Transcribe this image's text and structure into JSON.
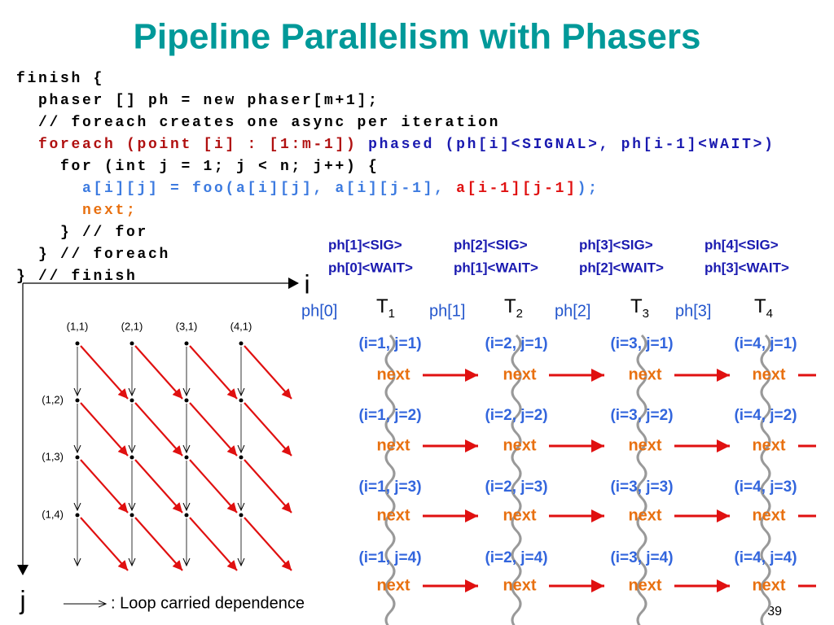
{
  "title": "Pipeline Parallelism with Phasers",
  "code": [
    [
      {
        "text": "finish {",
        "color": "#000000"
      }
    ],
    [
      {
        "text": "  phaser [] ph = new phaser[m+1];",
        "color": "#000000"
      }
    ],
    [
      {
        "text": "  // foreach creates one async per iteration",
        "color": "#000000"
      }
    ],
    [
      {
        "text": "  foreach (point [i] : [1:m-1])",
        "color": "#b01010"
      },
      {
        "text": " phased (ph[i]<SIGNAL>, ph[i-1]<WAIT>)",
        "color": "#1a1ab0"
      }
    ],
    [
      {
        "text": "    for (int j = 1; j < n; j++) {",
        "color": "#000000"
      }
    ],
    [
      {
        "text": "      a[i][j] = foo(a[i][j], a[i][j-1], ",
        "color": "#3d7be0"
      },
      {
        "text": "a[i-1][j-1]",
        "color": "#e01010"
      },
      {
        "text": ");",
        "color": "#3d7be0"
      }
    ],
    [
      {
        "text": "      next;",
        "color": "#e87010"
      }
    ],
    [
      {
        "text": "    } // for",
        "color": "#000000"
      }
    ],
    [
      {
        "text": "  } // foreach",
        "color": "#000000"
      }
    ],
    [
      {
        "text": "} // finish",
        "color": "#000000"
      }
    ]
  ],
  "grid_labels": {
    "top": [
      "(1,1)",
      "(2,1)",
      "(3,1)",
      "(4,1)"
    ],
    "left": [
      "(1,2)",
      "(1,3)",
      "(1,4)"
    ]
  },
  "axis_i": "i",
  "axis_j": "j",
  "legend": ": Loop carried dependence",
  "phase_headers": [
    [
      "ph[1]<SIG>",
      "ph[0]<WAIT>"
    ],
    [
      "ph[2]<SIG>",
      "ph[1]<WAIT>"
    ],
    [
      "ph[3]<SIG>",
      "ph[2]<WAIT>"
    ],
    [
      "ph[4]<SIG>",
      "ph[3]<WAIT>"
    ]
  ],
  "phasers": [
    "ph[0]",
    "ph[1]",
    "ph[2]",
    "ph[3]"
  ],
  "tasks": [
    {
      "name": "T",
      "sub": "1"
    },
    {
      "name": "T",
      "sub": "2"
    },
    {
      "name": "T",
      "sub": "3"
    },
    {
      "name": "T",
      "sub": "4"
    }
  ],
  "iterations": [
    [
      "(i=1, j=1)",
      "(i=2, j=1)",
      "(i=3, j=1)",
      "(i=4, j=1)"
    ],
    [
      "(i=1, j=2)",
      "(i=2, j=2)",
      "(i=3, j=2)",
      "(i=4, j=2)"
    ],
    [
      "(i=1, j=3)",
      "(i=2, j=3)",
      "(i=3, j=3)",
      "(i=4, j=3)"
    ],
    [
      "(i=1, j=4)",
      "(i=2, j=4)",
      "(i=3, j=4)",
      "(i=4, j=4)"
    ]
  ],
  "step_label": "next",
  "page_number": "39"
}
